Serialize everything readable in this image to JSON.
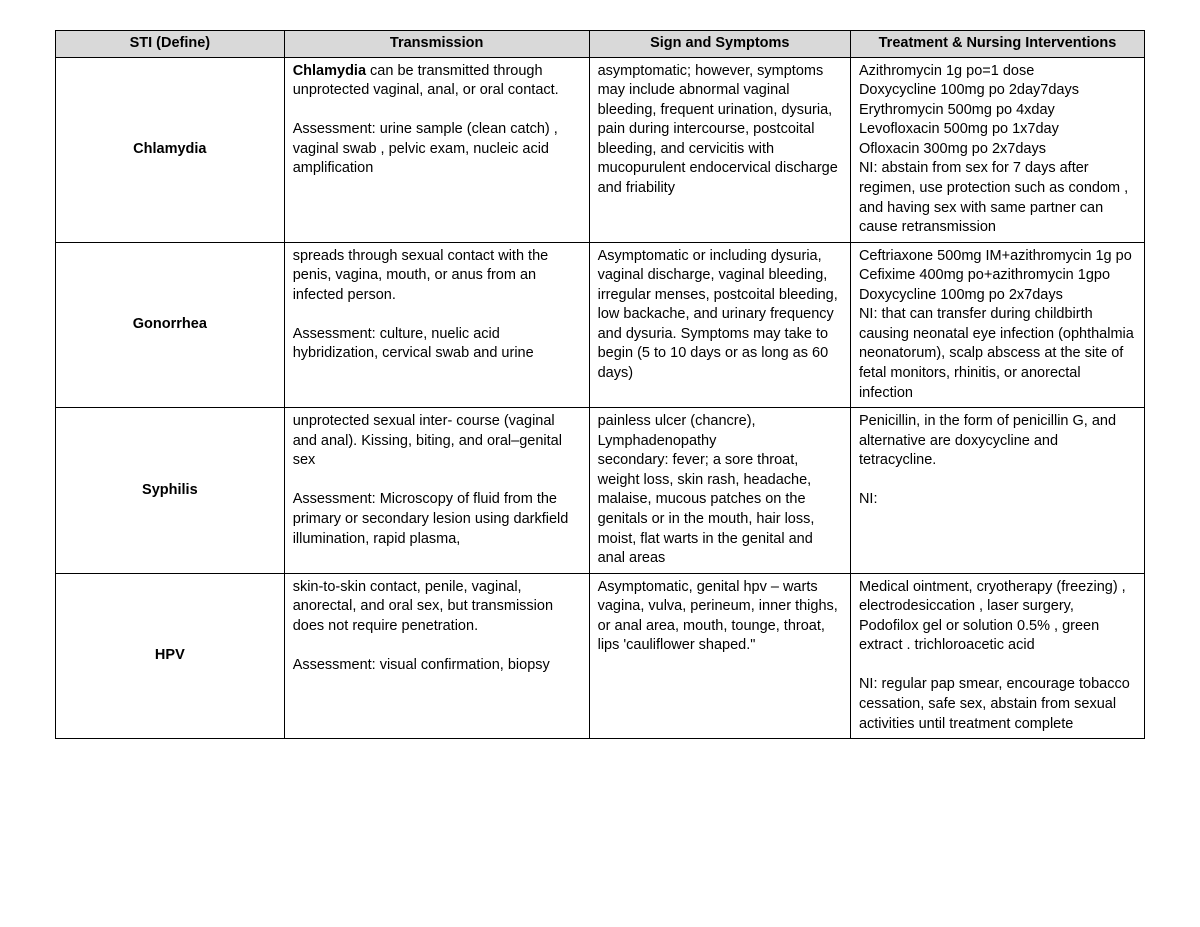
{
  "headers": {
    "sti": "STI (Define)",
    "transmission": "Transmission",
    "signs": "Sign and Symptoms",
    "treatment": "Treatment & Nursing Interventions"
  },
  "rows": [
    {
      "sti": "Chlamydia",
      "transmission_lead_bold": "Chlamydia",
      "transmission_after_bold": " can be transmitted through unprotected vaginal, anal, or oral contact.\n\nAssessment: urine sample (clean catch) , vaginal swab , pelvic exam, nucleic acid amplification",
      "signs": "asymptomatic; however, symptoms may include abnormal vaginal bleeding, frequent urination, dysuria, pain during intercourse, postcoital bleeding, and cervicitis with mucopurulent endocervical discharge and friability",
      "treatment": "Azithromycin 1g po=1 dose\nDoxycycline 100mg po 2day7days\nErythromycin 500mg po 4xday\nLevofloxacin 500mg po 1x7day\nOfloxacin 300mg po 2x7days\nNI: abstain from sex for 7 days after regimen, use protection such as condom , and having sex with same partner can cause retransmission"
    },
    {
      "sti": "Gonorrhea",
      "transmission_lead_bold": "",
      "transmission_after_bold": "spreads through sexual contact with the penis, vagina, mouth, or anus from an infected person.\n\nAssessment: culture, nuelic acid hybridization, cervical swab and urine",
      "signs": "Asymptomatic or including dysuria, vaginal discharge, vaginal bleeding, irregular menses, postcoital bleeding, low backache, and urinary frequency and dysuria. Symptoms may take to begin (5 to 10 days or as long as 60 days)",
      "treatment": "Ceftriaxone 500mg IM+azithromycin 1g po\nCefixime 400mg po+azithromycin 1gpo\nDoxycycline 100mg po 2x7days\nNI: that can transfer during childbirth causing neonatal eye infection (ophthalmia neonatorum), scalp abscess at the site of fetal monitors, rhinitis, or anorectal infection"
    },
    {
      "sti": "Syphilis",
      "transmission_lead_bold": "",
      "transmission_after_bold": "unprotected sexual inter- course (vaginal and anal). Kissing, biting, and oral–genital sex\n\nAssessment: Microscopy of fluid from the primary or secondary lesion using darkfield illumination, rapid plasma,",
      "signs": "painless ulcer (chancre), Lymphadenopathy\nsecondary: fever; a sore throat, weight loss, skin rash, headache, malaise, mucous patches on the genitals or in the mouth, hair loss, moist, flat warts in the genital and anal areas",
      "treatment": "Penicillin, in the form of penicillin G, and alternative are doxycycline and tetracycline.\n\nNI:"
    },
    {
      "sti": "HPV",
      "transmission_lead_bold": "",
      "transmission_after_bold": "skin-to-skin contact, penile, vaginal, anorectal, and oral sex, but transmission does not require penetration.\n\nAssessment: visual confirmation, biopsy",
      "signs": "Asymptomatic, genital hpv – warts vagina, vulva, perineum, inner thighs, or anal area, mouth, tounge, throat, lips 'cauliflower shaped.\"",
      "treatment": "Medical ointment, cryotherapy (freezing) , electrodesiccation , laser surgery, Podofilox gel or solution 0.5% , green extract . trichloroacetic acid\n\nNI: regular pap smear, encourage tobacco cessation, safe sex, abstain from sexual activities until treatment complete"
    }
  ]
}
